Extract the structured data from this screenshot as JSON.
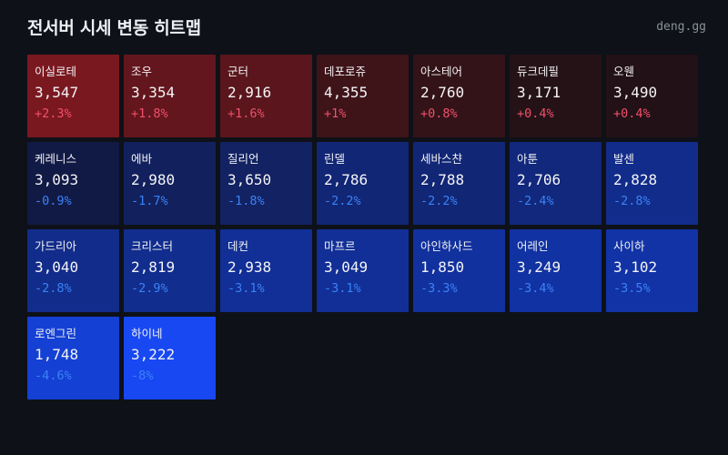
{
  "header": {
    "title": "전서버 시세 변동 히트맵",
    "brand": "deng.gg"
  },
  "colors": {
    "background": "#0e1118",
    "up_text": "#f0506a",
    "down_text": "#3b82f6"
  },
  "tiles": [
    {
      "name": "이실로테",
      "price": "3,547",
      "change": "+2.3%",
      "dir": "up",
      "bg": "#7a1820"
    },
    {
      "name": "조우",
      "price": "3,354",
      "change": "+1.8%",
      "dir": "up",
      "bg": "#63161d"
    },
    {
      "name": "군터",
      "price": "2,916",
      "change": "+1.6%",
      "dir": "up",
      "bg": "#5a161c"
    },
    {
      "name": "데포로쥬",
      "price": "4,355",
      "change": "+1%",
      "dir": "up",
      "bg": "#3e1419"
    },
    {
      "name": "아스테어",
      "price": "2,760",
      "change": "+0.8%",
      "dir": "up",
      "bg": "#331318"
    },
    {
      "name": "듀크데필",
      "price": "3,171",
      "change": "+0.4%",
      "dir": "up",
      "bg": "#251217"
    },
    {
      "name": "오웬",
      "price": "3,490",
      "change": "+0.4%",
      "dir": "up",
      "bg": "#221116"
    },
    {
      "name": "케레니스",
      "price": "3,093",
      "change": "-0.9%",
      "dir": "down",
      "bg": "#111a45"
    },
    {
      "name": "에바",
      "price": "2,980",
      "change": "-1.7%",
      "dir": "down",
      "bg": "#12215e"
    },
    {
      "name": "질리언",
      "price": "3,650",
      "change": "-1.8%",
      "dir": "down",
      "bg": "#122262"
    },
    {
      "name": "린델",
      "price": "2,786",
      "change": "-2.2%",
      "dir": "down",
      "bg": "#112675"
    },
    {
      "name": "세바스챤",
      "price": "2,788",
      "change": "-2.2%",
      "dir": "down",
      "bg": "#112675"
    },
    {
      "name": "아툰",
      "price": "2,706",
      "change": "-2.4%",
      "dir": "down",
      "bg": "#11287c"
    },
    {
      "name": "발센",
      "price": "2,828",
      "change": "-2.8%",
      "dir": "down",
      "bg": "#112c8a"
    },
    {
      "name": "가드리아",
      "price": "3,040",
      "change": "-2.8%",
      "dir": "down",
      "bg": "#112c8a"
    },
    {
      "name": "크리스터",
      "price": "2,819",
      "change": "-2.9%",
      "dir": "down",
      "bg": "#112d8e"
    },
    {
      "name": "데컨",
      "price": "2,938",
      "change": "-3.1%",
      "dir": "down",
      "bg": "#112f96"
    },
    {
      "name": "마프르",
      "price": "3,049",
      "change": "-3.1%",
      "dir": "down",
      "bg": "#112f96"
    },
    {
      "name": "아인하사드",
      "price": "1,850",
      "change": "-3.3%",
      "dir": "down",
      "bg": "#11319e"
    },
    {
      "name": "어레인",
      "price": "3,249",
      "change": "-3.4%",
      "dir": "down",
      "bg": "#1132a2"
    },
    {
      "name": "사이하",
      "price": "3,102",
      "change": "-3.5%",
      "dir": "down",
      "bg": "#1133a6"
    },
    {
      "name": "로엔그린",
      "price": "1,748",
      "change": "-4.6%",
      "dir": "down",
      "bg": "#1440d4"
    },
    {
      "name": "하이네",
      "price": "3,222",
      "change": "-8%",
      "dir": "down",
      "bg": "#1848f2"
    }
  ],
  "chart_data": {
    "type": "heatmap",
    "title": "전서버 시세 변동 히트맵",
    "layout": {
      "columns": 7,
      "rows": 4
    },
    "categories": [
      "이실로테",
      "조우",
      "군터",
      "데포로쥬",
      "아스테어",
      "듀크데필",
      "오웬",
      "케레니스",
      "에바",
      "질리언",
      "린델",
      "세바스챤",
      "아툰",
      "발센",
      "가드리아",
      "크리스터",
      "데컨",
      "마프르",
      "아인하사드",
      "어레인",
      "사이하",
      "로엔그린",
      "하이네"
    ],
    "series": [
      {
        "name": "price",
        "values": [
          3547,
          3354,
          2916,
          4355,
          2760,
          3171,
          3490,
          3093,
          2980,
          3650,
          2786,
          2788,
          2706,
          2828,
          3040,
          2819,
          2938,
          3049,
          1850,
          3249,
          3102,
          1748,
          3222
        ]
      },
      {
        "name": "change_pct",
        "values": [
          2.3,
          1.8,
          1.6,
          1.0,
          0.8,
          0.4,
          0.4,
          -0.9,
          -1.7,
          -1.8,
          -2.2,
          -2.2,
          -2.4,
          -2.8,
          -2.8,
          -2.9,
          -3.1,
          -3.1,
          -3.3,
          -3.4,
          -3.5,
          -4.6,
          -8.0
        ]
      }
    ],
    "color_scale": {
      "positive": "red",
      "negative": "blue",
      "intensity": "proportional to |change_pct|"
    }
  }
}
